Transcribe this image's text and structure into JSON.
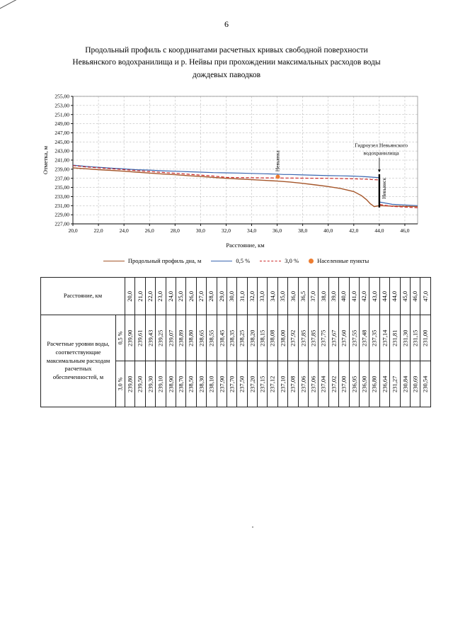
{
  "page": {
    "number": "6",
    "title_lines": [
      "Продольный профиль с координатами расчетных кривых свободной поверхности",
      "Невьянского водохранилища и р. Нейвы при прохождении максимальных расходов воды",
      "дождевых паводков"
    ]
  },
  "chart_data": {
    "type": "line",
    "title": "Продольный профиль с координатами расчетных кривых свободной поверхности Невьянского водохранилища и р. Нейвы при прохождении максимальных расходов воды дождевых паводков",
    "xlabel": "Расстояние, км",
    "ylabel": "Отметка, м",
    "xlim": [
      20,
      47
    ],
    "ylim": [
      227,
      255
    ],
    "grid": true,
    "legend_position": "bottom",
    "x_ticks": [
      20,
      22,
      24,
      26,
      28,
      30,
      32,
      34,
      36,
      38,
      40,
      42,
      44,
      46
    ],
    "x_tick_labels": [
      "20,0",
      "22,0",
      "24,0",
      "26,0",
      "28,0",
      "30,0",
      "32,0",
      "34,0",
      "36,0",
      "38,0",
      "40,0",
      "42,0",
      "44,0",
      "46,0"
    ],
    "y_ticks": [
      227,
      229,
      231,
      233,
      235,
      237,
      239,
      241,
      243,
      245,
      247,
      249,
      251,
      253,
      255
    ],
    "y_tick_labels": [
      "227,00",
      "229,00",
      "231,00",
      "233,00",
      "235,00",
      "237,00",
      "239,00",
      "241,00",
      "243,00",
      "245,00",
      "247,00",
      "249,00",
      "251,00",
      "253,00",
      "255,00"
    ],
    "series": [
      {
        "name": "Продольный профиль дна, м",
        "color": "#a5562a",
        "style": "solid",
        "x": [
          20,
          21,
          22,
          23,
          24,
          25,
          26,
          27,
          28,
          29,
          30,
          31,
          32,
          33,
          34,
          35,
          36,
          37,
          38,
          39,
          40,
          41,
          42,
          42.6,
          43,
          43.3,
          43.6,
          44,
          45,
          46,
          47
        ],
        "y": [
          239.3,
          239.1,
          238.9,
          238.75,
          238.55,
          238.35,
          238.15,
          237.95,
          237.8,
          237.6,
          237.4,
          237.2,
          237.0,
          236.85,
          236.7,
          236.55,
          236.4,
          236.2,
          235.9,
          235.55,
          235.2,
          234.75,
          234.1,
          233.2,
          232.3,
          231.4,
          230.8,
          231.0,
          230.9,
          230.85,
          230.8
        ]
      },
      {
        "name": "0,5 %",
        "color": "#3a66b0",
        "style": "solid",
        "x": [
          20,
          21,
          22,
          23,
          24,
          25,
          26,
          27,
          28,
          29,
          30,
          31,
          32,
          33,
          34,
          35,
          36,
          36.5,
          37,
          38,
          39,
          40,
          41,
          42,
          43,
          44,
          44,
          45,
          46,
          47
        ],
        "y": [
          239.9,
          239.61,
          239.43,
          239.25,
          239.07,
          238.89,
          238.8,
          238.65,
          238.55,
          238.45,
          238.35,
          238.25,
          238.2,
          238.15,
          238.08,
          238.0,
          237.92,
          237.85,
          237.85,
          237.75,
          237.67,
          237.6,
          237.55,
          237.48,
          237.35,
          237.14,
          231.81,
          231.3,
          231.15,
          231.0
        ]
      },
      {
        "name": "3,0 %",
        "color": "#cc2929",
        "style": "dashed",
        "x": [
          20,
          21,
          22,
          23,
          24,
          25,
          26,
          27,
          28,
          29,
          30,
          31,
          32,
          33,
          34,
          35,
          36,
          36.5,
          37,
          38,
          39,
          40,
          41,
          42,
          43,
          44,
          44,
          45,
          46,
          47
        ],
        "y": [
          239.8,
          239.5,
          239.3,
          239.1,
          238.9,
          238.7,
          238.5,
          238.3,
          238.1,
          237.9,
          237.7,
          237.5,
          237.2,
          237.15,
          237.12,
          237.1,
          237.08,
          237.06,
          237.06,
          237.04,
          237.02,
          237.0,
          236.95,
          236.9,
          236.8,
          236.64,
          231.27,
          230.84,
          230.69,
          230.54
        ]
      }
    ],
    "points": [
      {
        "label": "Невьянка",
        "x": 36.05,
        "y": 237.35
      }
    ],
    "points_color": "#ed7d31",
    "legend_points_label": "Населенные пункты",
    "dam": {
      "x": 44,
      "y1": 230.6,
      "y2": 237.9
    },
    "annotations": {
      "gidrouzel_lines": [
        "Гидроузел Невьянского",
        "водохранилища"
      ],
      "gidrouzel_pos": {
        "x": 44.15,
        "y": 243.9
      },
      "arrow": {
        "x": 44,
        "y_from": 241.5,
        "y_to": 238.3
      },
      "nevyanka": {
        "text": "Невьянка",
        "x": 36.15,
        "y": 240.8
      },
      "nevyansk": {
        "text": "Невьянск",
        "x": 44.5,
        "y": 234.8
      }
    }
  },
  "table": {
    "row1_label": "Расстояние, км",
    "row23_label": "Расчетные уровни воды, соответствующие максимальным расходам расчетных обеспеченностей, м",
    "sub_labels": [
      "0,5 %",
      "3,0 %"
    ],
    "distances": [
      "20,0",
      "21,0",
      "22,0",
      "23,0",
      "24,0",
      "25,0",
      "26,0",
      "27,0",
      "28,0",
      "29,0",
      "30,0",
      "31,0",
      "32,0",
      "33,0",
      "34,0",
      "35,0",
      "36,0",
      "36,5",
      "37,0",
      "38,0",
      "39,0",
      "40,0",
      "41,0",
      "42,0",
      "43,0",
      "44,0",
      "44,0",
      "45,0",
      "46,0",
      "47,0"
    ],
    "levels_05": [
      "239,90",
      "239,61",
      "239,43",
      "239,25",
      "239,07",
      "238,89",
      "238,80",
      "238,65",
      "238,55",
      "238,45",
      "238,35",
      "238,25",
      "238,20",
      "238,15",
      "238,08",
      "238,00",
      "237,92",
      "237,85",
      "237,85",
      "237,75",
      "237,67",
      "237,60",
      "237,55",
      "237,48",
      "237,35",
      "237,14",
      "231,81",
      "231,30",
      "231,15",
      "231,00"
    ],
    "levels_30": [
      "239,80",
      "239,50",
      "239,30",
      "239,10",
      "238,90",
      "238,70",
      "238,50",
      "238,30",
      "238,10",
      "237,90",
      "237,70",
      "237,50",
      "237,20",
      "237,15",
      "237,12",
      "237,10",
      "237,08",
      "237,06",
      "237,06",
      "237,04",
      "237,02",
      "237,00",
      "236,95",
      "236,90",
      "236,80",
      "236,64",
      "231,27",
      "230,84",
      "230,69",
      "230,54"
    ]
  }
}
